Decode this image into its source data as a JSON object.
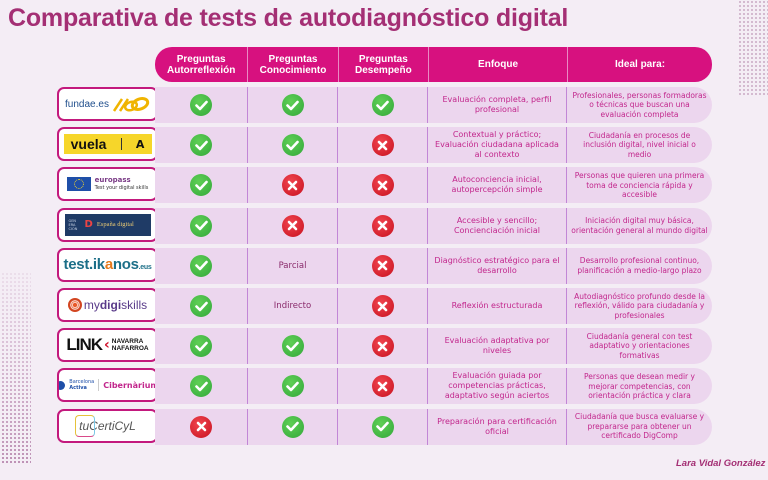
{
  "title": "Comparativa de tests de autodiagnóstico digital",
  "author": "Lara Vidal González",
  "colors": {
    "title": "#a42f74",
    "header": "#d7117f",
    "row_bg": "#ecd6ee",
    "text_pink": "#c2268c",
    "check": "#3fb244",
    "cross": "#d8192a"
  },
  "table": {
    "headers": [
      {
        "line1": "Preguntas",
        "line2": "Autorreflexión"
      },
      {
        "line1": "Preguntas",
        "line2": "Conocimiento"
      },
      {
        "line1": "Preguntas",
        "line2": "Desempeño"
      },
      {
        "line1": "Enfoque",
        "line2": ""
      },
      {
        "line1": "Ideal para:",
        "line2": ""
      }
    ],
    "rows": [
      {
        "tool": "fundae.es",
        "autorreflexion": "check",
        "conocimiento": "check",
        "desempeno": "check",
        "enfoque": "Evaluación completa, perfil profesional",
        "ideal": "Profesionales, personas formadoras o técnicas que buscan una evaluación completa"
      },
      {
        "tool": "vuela",
        "autorreflexion": "check",
        "conocimiento": "check",
        "desempeno": "cross",
        "enfoque": "Contextual y práctico; Evaluación ciudadana aplicada al contexto",
        "ideal": "Ciudadanía en procesos de inclusión digital, nivel inicial o medio"
      },
      {
        "tool": "europass · Test your digital skills",
        "autorreflexion": "check",
        "conocimiento": "cross",
        "desempeno": "cross",
        "enfoque": "Autoconciencia inicial, autopercepción simple",
        "ideal": "Personas que quieren una primera toma de conciencia rápida y accesible"
      },
      {
        "tool": "Generación España Digital",
        "autorreflexion": "check",
        "conocimiento": "cross",
        "desempeno": "cross",
        "enfoque": "Accesible y sencillo; Concienciación inicial",
        "ideal": "Iniciación digital muy básica, orientación general al mundo digital"
      },
      {
        "tool": "test.ikanos.eus",
        "autorreflexion": "check",
        "conocimiento": "Parcial",
        "desempeno": "cross",
        "enfoque": "Diagnóstico estratégico para el desarrollo",
        "ideal": "Desarrollo profesional continuo, planificación a medio-largo plazo"
      },
      {
        "tool": "mydigiskills",
        "autorreflexion": "check",
        "conocimiento": "Indirecto",
        "desempeno": "cross",
        "enfoque": "Reflexión estructurada",
        "ideal": "Autodiagnóstico profundo desde la reflexión, válido para ciudadanía y profesionales"
      },
      {
        "tool": "LINK Navarra Nafarroa",
        "autorreflexion": "check",
        "conocimiento": "check",
        "desempeno": "cross",
        "enfoque": "Evaluación adaptativa por niveles",
        "ideal": "Ciudadanía general con test adaptativo y orientaciones formativas"
      },
      {
        "tool": "Barcelona Activa · Cibernàrium",
        "autorreflexion": "check",
        "conocimiento": "check",
        "desempeno": "cross",
        "enfoque": "Evaluación guiada por competencias prácticas, adaptativo según aciertos",
        "ideal": "Personas que desean medir y mejorar competencias, con orientación práctica y clara"
      },
      {
        "tool": "tuCertiCyL",
        "autorreflexion": "cross",
        "conocimiento": "check",
        "desempeno": "check",
        "enfoque": "Preparación para certificación oficial",
        "ideal": "Ciudadanía que busca evaluarse y prepararse para obtener un certificado DigComp"
      }
    ]
  },
  "logos": {
    "fundae": {
      "text": "fundae.es"
    },
    "vuela": {
      "text": "vuela",
      "mark": "A"
    },
    "europass": {
      "name": "europass",
      "sub": "Test your digital skills"
    },
    "espana": {
      "gen": "GEN ERA CIÓN",
      "text": "España digital"
    },
    "ikanos": {
      "a": "test.",
      "b": "ik",
      "c": "a",
      "d": "nos",
      "e": ".eus"
    },
    "mydigi": {
      "a": "my",
      "b": "digi",
      "c": "skills"
    },
    "link": {
      "main": "LINK",
      "l1": "NAVARRA",
      "l2": "NAFARROA"
    },
    "barcelona": {
      "l1": "Barcelona",
      "l2": "Activa",
      "right": "Cibernàrium"
    },
    "certicyl": {
      "text": "tuCertiCyL"
    }
  }
}
